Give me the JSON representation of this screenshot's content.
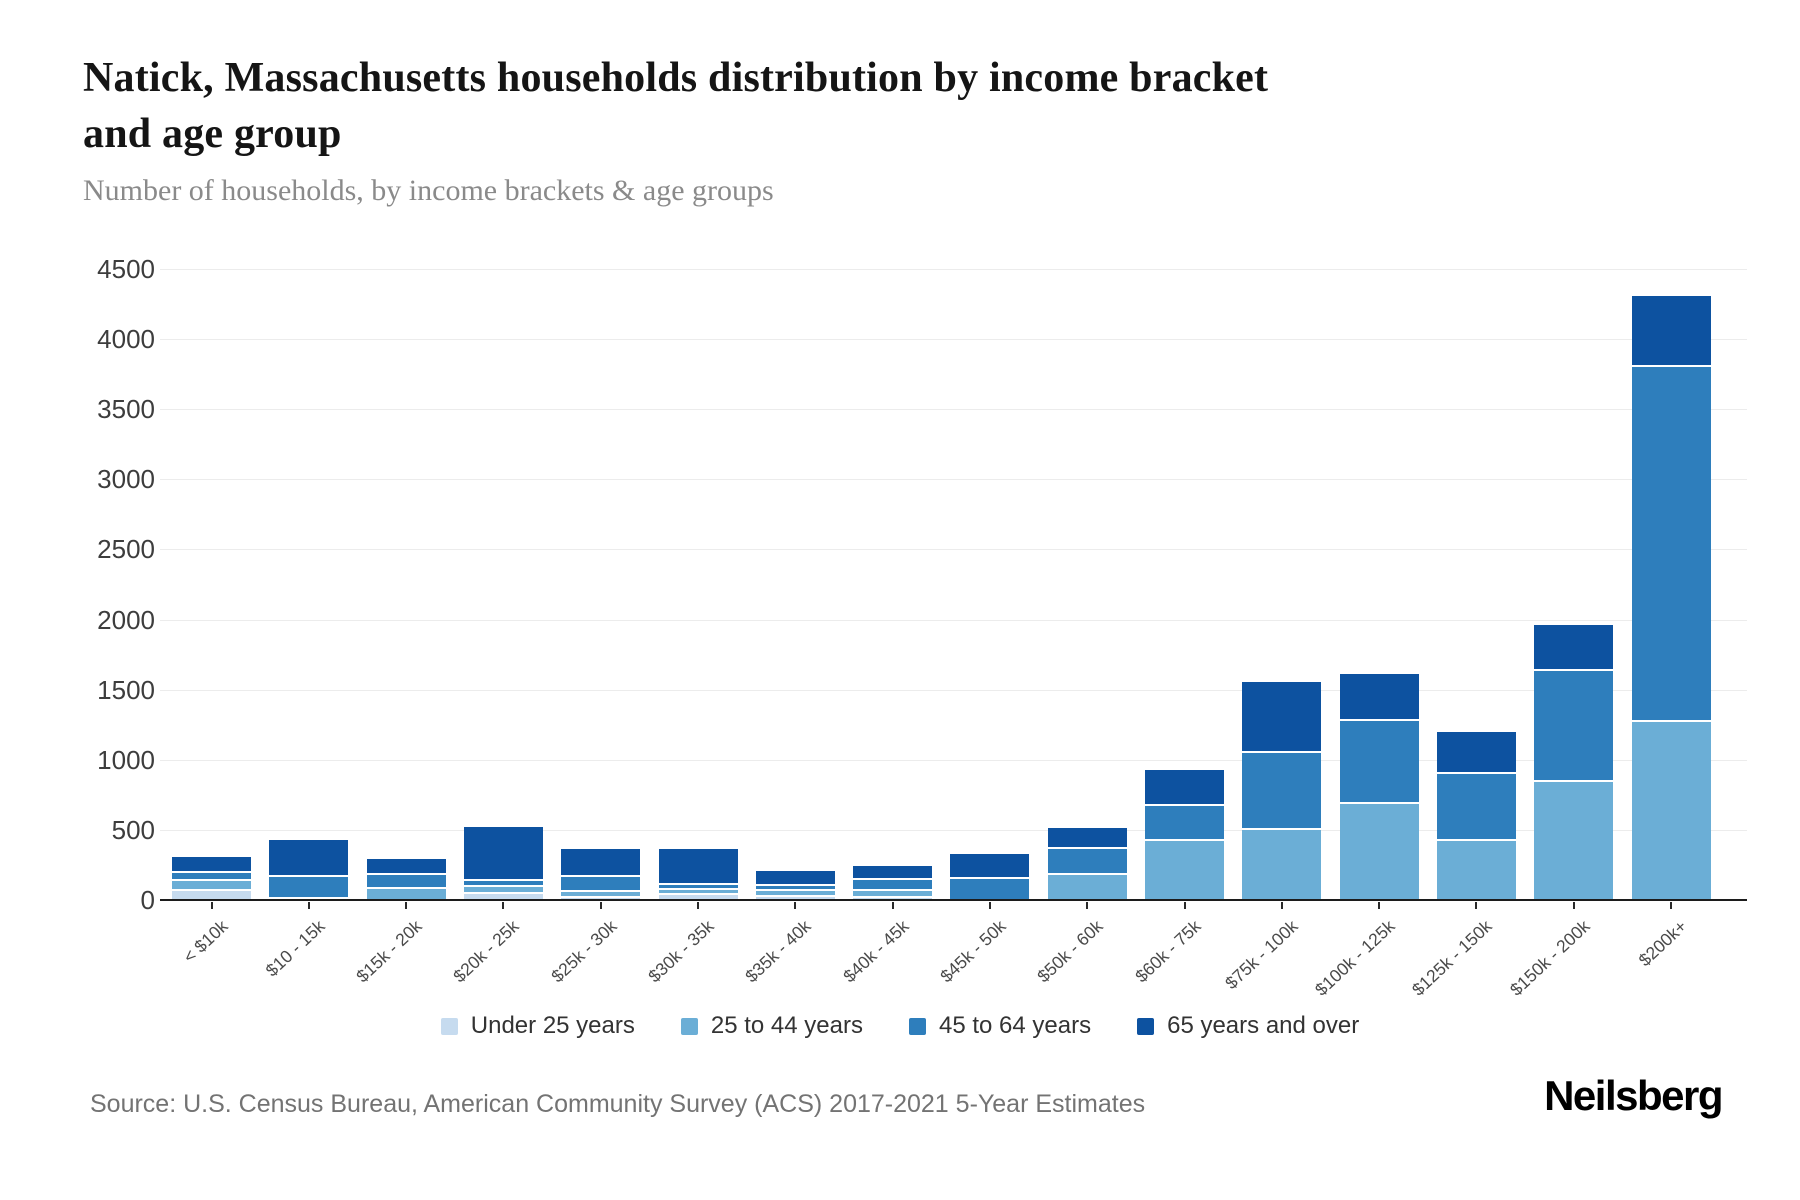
{
  "header": {
    "title": "Natick, Massachusetts households distribution by income bracket\nand age group",
    "subtitle": "Number of households, by income brackets & age groups"
  },
  "source": {
    "text": "Source: U.S. Census Bureau, American Community Survey (ACS) 2017-2021 5-Year Estimates"
  },
  "logo": {
    "text": "Neilsberg"
  },
  "colors": {
    "under_25": "#c6dbef",
    "age_25_44": "#6baed6",
    "age_45_64": "#2e7ebc",
    "age_65_over": "#0d52a0",
    "gridline": "#ececec",
    "axis": "#1c1c1c"
  },
  "chart_data": {
    "type": "bar",
    "stacked": true,
    "title": "Natick, Massachusetts households distribution by income bracket and age group",
    "subtitle": "Number of households, by income brackets & age groups",
    "xlabel": "",
    "ylabel": "Number of households",
    "ylim": [
      0,
      4500
    ],
    "yticks": [
      0,
      500,
      1000,
      1500,
      2000,
      2500,
      3000,
      3500,
      4000,
      4500
    ],
    "grid": true,
    "legend_position": "bottom",
    "categories": [
      "< $10k",
      "$10 - 15k",
      "$15k - 20k",
      "$20k - 25k",
      "$25k - 30k",
      "$30k - 35k",
      "$35k - 40k",
      "$40k - 45k",
      "$45k - 50k",
      "$50k - 60k",
      "$60k - 75k",
      "$75k - 100k",
      "$100k - 125k",
      "$125k - 150k",
      "$150k - 200k",
      "$200k+"
    ],
    "series": [
      {
        "name": "Under 25 years",
        "color": "#c6dbef",
        "values": [
          80,
          0,
          0,
          60,
          25,
          50,
          35,
          30,
          0,
          0,
          0,
          0,
          0,
          0,
          0,
          0
        ]
      },
      {
        "name": "25 to 44 years",
        "color": "#6baed6",
        "values": [
          70,
          20,
          90,
          45,
          45,
          35,
          40,
          45,
          0,
          190,
          435,
          515,
          700,
          435,
          855,
          1280
        ]
      },
      {
        "name": "45 to 64 years",
        "color": "#2e7ebc",
        "values": [
          60,
          160,
          105,
          45,
          105,
          35,
          40,
          85,
          165,
          185,
          250,
          550,
          590,
          480,
          795,
          2535
        ]
      },
      {
        "name": "65 years and over",
        "color": "#0d52a0",
        "values": [
          95,
          250,
          100,
          370,
          190,
          245,
          95,
          85,
          160,
          135,
          245,
          490,
          320,
          285,
          310,
          490
        ]
      }
    ],
    "totals": [
      305,
      430,
      295,
      520,
      365,
      365,
      210,
      245,
      325,
      510,
      930,
      1555,
      1610,
      1200,
      1960,
      4305
    ]
  }
}
